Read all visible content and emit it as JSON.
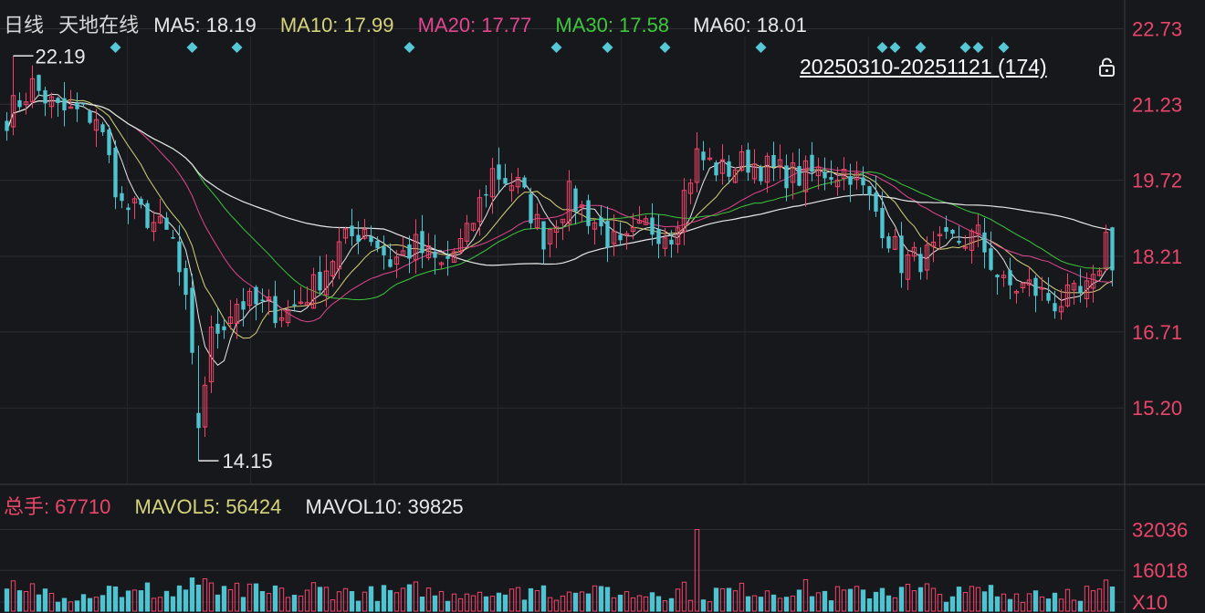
{
  "header": {
    "period": "日线",
    "name": "天地在线",
    "ma": [
      {
        "label": "MA5:",
        "value": "18.19",
        "color": "#e8e8e8"
      },
      {
        "label": "MA10:",
        "value": "17.99",
        "color": "#d6d47a"
      },
      {
        "label": "MA20:",
        "value": "17.77",
        "color": "#e2468f"
      },
      {
        "label": "MA30:",
        "value": "17.58",
        "color": "#3cc83c"
      },
      {
        "label": "MA60:",
        "value": "18.01",
        "color": "#e8e8e8"
      }
    ]
  },
  "range_label": "20250310-20251121 (174)",
  "price_axis": [
    "22.73",
    "21.23",
    "19.72",
    "18.21",
    "16.71",
    "15.20"
  ],
  "price_range": [
    13.7,
    23.3
  ],
  "max_label": "22.19",
  "min_label": "14.15",
  "volume_header": {
    "total_label": "总手:",
    "total_value": "67710",
    "mavol5_label": "MAVOL5:",
    "mavol5_value": "56424",
    "mavol10_label": "MAVOL10:",
    "mavol10_value": "39825"
  },
  "volume_axis": [
    "32036",
    "16018",
    "X10"
  ],
  "volume_scale": [
    0,
    34000
  ],
  "colors": {
    "up": "#f0456a",
    "down": "#4fc3d0",
    "marker": "#56c7d4",
    "grid": "#2c2e34",
    "axis_text": "#e8466a"
  },
  "chart_data": {
    "type": "candlestick",
    "date_range": "20250310-20251121",
    "count": 174,
    "close_anchors": [
      [
        0,
        21.0
      ],
      [
        4,
        21.6
      ],
      [
        8,
        21.1
      ],
      [
        14,
        21.0
      ],
      [
        18,
        19.2
      ],
      [
        22,
        19.0
      ],
      [
        26,
        18.5
      ],
      [
        28,
        17.2
      ],
      [
        30,
        14.9
      ],
      [
        32,
        16.6
      ],
      [
        36,
        17.3
      ],
      [
        40,
        17.2
      ],
      [
        44,
        17.1
      ],
      [
        48,
        17.6
      ],
      [
        52,
        18.4
      ],
      [
        56,
        18.8
      ],
      [
        60,
        18.1
      ],
      [
        64,
        18.4
      ],
      [
        68,
        18.0
      ],
      [
        72,
        18.6
      ],
      [
        76,
        19.9
      ],
      [
        80,
        19.6
      ],
      [
        84,
        18.6
      ],
      [
        88,
        19.4
      ],
      [
        92,
        18.9
      ],
      [
        96,
        18.3
      ],
      [
        100,
        18.8
      ],
      [
        104,
        18.7
      ],
      [
        108,
        20.2
      ],
      [
        112,
        19.9
      ],
      [
        116,
        20.1
      ],
      [
        120,
        19.9
      ],
      [
        124,
        19.8
      ],
      [
        128,
        19.9
      ],
      [
        132,
        19.9
      ],
      [
        136,
        19.1
      ],
      [
        140,
        18.1
      ],
      [
        144,
        18.2
      ],
      [
        148,
        18.5
      ],
      [
        152,
        18.6
      ],
      [
        156,
        17.6
      ],
      [
        160,
        17.6
      ],
      [
        164,
        17.3
      ],
      [
        168,
        17.4
      ],
      [
        170,
        17.6
      ],
      [
        172,
        18.6
      ],
      [
        173,
        18.15
      ]
    ],
    "max_price": 22.19,
    "min_price": 14.15,
    "ma_lines": [
      "MA5",
      "MA10",
      "MA20",
      "MA30",
      "MA60"
    ],
    "volume_peak": 32036
  }
}
